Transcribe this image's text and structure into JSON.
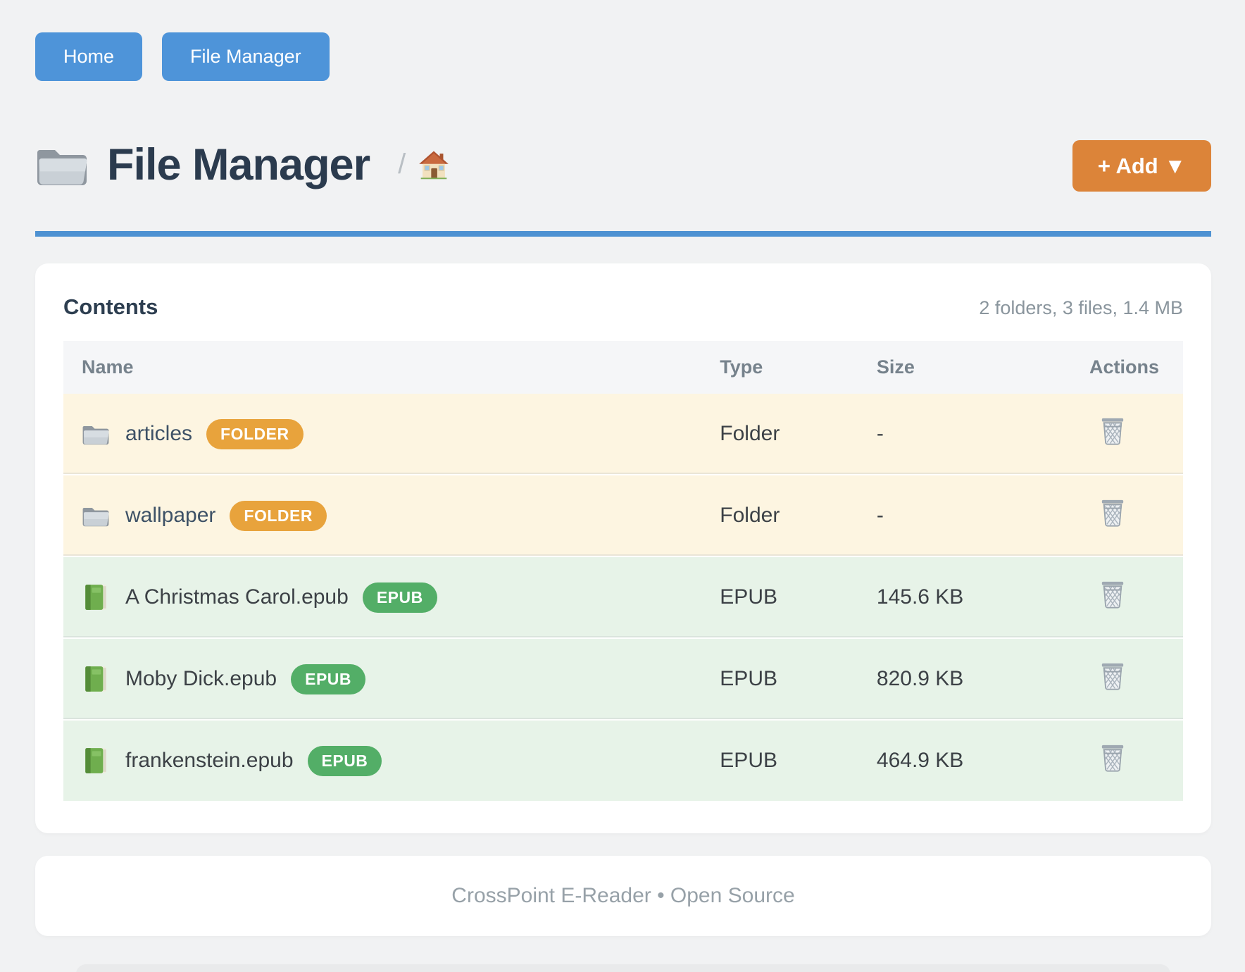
{
  "nav": {
    "buttons": [
      {
        "label": "Home"
      },
      {
        "label": "File Manager"
      }
    ]
  },
  "header": {
    "icon": "folder-icon",
    "title": "File Manager",
    "breadcrumb_separator": "/",
    "breadcrumb_home_icon": "house-icon",
    "add_button_label": "+ Add ▼"
  },
  "contents": {
    "title": "Contents",
    "summary": "2 folders, 3 files, 1.4 MB",
    "columns": [
      "Name",
      "Type",
      "Size",
      "Actions"
    ],
    "rows": [
      {
        "kind": "folder",
        "icon": "folder-icon",
        "name": "articles",
        "badge": "FOLDER",
        "type": "Folder",
        "size": "-",
        "action_icon": "trash-icon"
      },
      {
        "kind": "folder",
        "icon": "folder-icon",
        "name": "wallpaper",
        "badge": "FOLDER",
        "type": "Folder",
        "size": "-",
        "action_icon": "trash-icon"
      },
      {
        "kind": "epub",
        "icon": "green-book-icon",
        "name": "A Christmas Carol.epub",
        "badge": "EPUB",
        "type": "EPUB",
        "size": "145.6 KB",
        "action_icon": "trash-icon"
      },
      {
        "kind": "epub",
        "icon": "green-book-icon",
        "name": "Moby Dick.epub",
        "badge": "EPUB",
        "type": "EPUB",
        "size": "820.9 KB",
        "action_icon": "trash-icon"
      },
      {
        "kind": "epub",
        "icon": "green-book-icon",
        "name": "frankenstein.epub",
        "badge": "EPUB",
        "type": "EPUB",
        "size": "464.9 KB",
        "action_icon": "trash-icon"
      }
    ]
  },
  "footer": {
    "text": "CrossPoint E-Reader • Open Source"
  },
  "colors": {
    "accent_blue": "#4e94d9",
    "rule_blue": "#4e92d2",
    "add_orange": "#dc8439",
    "badge_folder": "#e8a33c",
    "badge_epub": "#53ae67",
    "row_folder_bg": "#fdf5e1",
    "row_epub_bg": "#e7f3e8",
    "page_bg": "#f1f2f3",
    "title_text": "#2b3b4e",
    "muted_text": "#8a959d"
  }
}
